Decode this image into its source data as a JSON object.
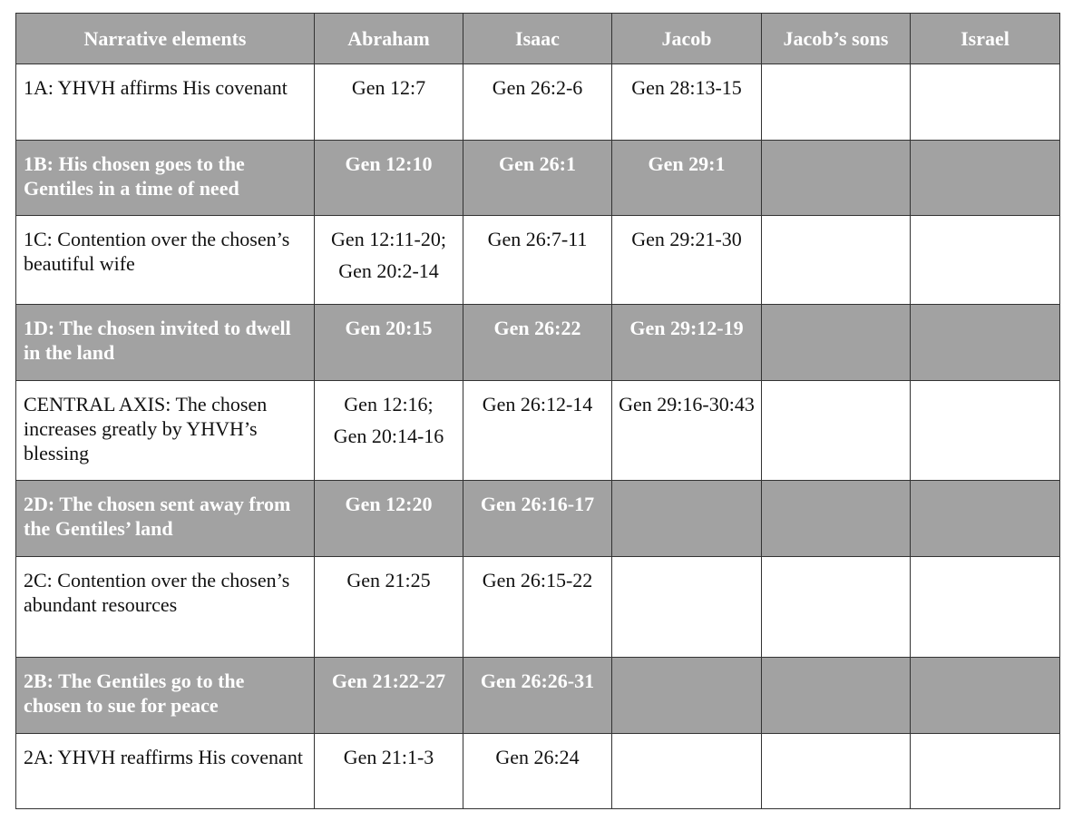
{
  "table": {
    "header": [
      "Narrative elements",
      "Abraham",
      "Isaac",
      "Jacob",
      "Jacob’s sons",
      "Israel"
    ],
    "rows": [
      [
        "1A: YHVH affirms His covenant",
        [
          "Gen 12:7"
        ],
        [
          "Gen 26:2-6"
        ],
        [
          "Gen 28:13-15"
        ],
        null,
        null
      ],
      [
        "1B: His chosen goes to the Gentiles in a time of need",
        [
          "Gen 12:10"
        ],
        [
          "Gen 26:1"
        ],
        [
          "Gen 29:1"
        ],
        null,
        null
      ],
      [
        "1C: Contention over the chosen’s beautiful wife",
        [
          "Gen 12:11-20;",
          "Gen 20:2-14"
        ],
        [
          "Gen 26:7-11"
        ],
        [
          "Gen 29:21-30"
        ],
        null,
        null
      ],
      [
        "1D: The chosen invited to dwell in the land",
        [
          "Gen 20:15"
        ],
        [
          "Gen 26:22"
        ],
        [
          "Gen 29:12-19"
        ],
        null,
        null
      ],
      [
        "CENTRAL AXIS: The chosen increases greatly by YHVH’s blessing",
        [
          "Gen 12:16;",
          "Gen 20:14-16"
        ],
        [
          "Gen 26:12-14"
        ],
        [
          "Gen 29:16-30:43"
        ],
        null,
        null
      ],
      [
        "2D: The chosen sent away from the Gentiles’ land",
        [
          "Gen 12:20"
        ],
        [
          "Gen 26:16-17"
        ],
        null,
        null,
        null
      ],
      [
        "2C: Contention over the chosen’s abundant resources",
        [
          "Gen 21:25"
        ],
        [
          "Gen 26:15-22"
        ],
        null,
        null,
        null
      ],
      [
        "2B: The Gentiles go to the chosen to sue for peace",
        [
          "Gen 21:22-27"
        ],
        [
          "Gen 26:26-31"
        ],
        null,
        null,
        null
      ],
      [
        "2A: YHVH reaffirms His covenant",
        [
          "Gen 21:1-3"
        ],
        [
          "Gen 26:24"
        ],
        null,
        null,
        null
      ]
    ]
  }
}
